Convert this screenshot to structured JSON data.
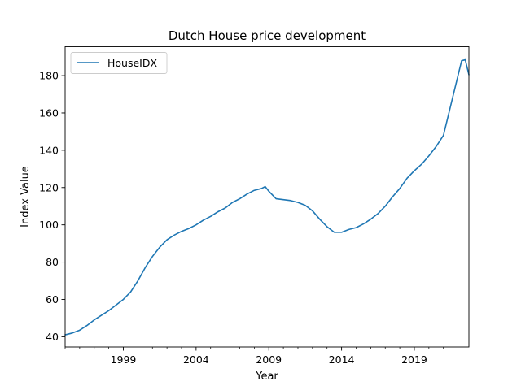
{
  "chart_data": {
    "type": "line",
    "title": "Dutch House price development",
    "xlabel": "Year",
    "ylabel": "Index Value",
    "xlim": [
      1995.0,
      2022.75
    ],
    "ylim": [
      34.5,
      195.5
    ],
    "x_ticks": [
      1999,
      2004,
      2009,
      2014,
      2019
    ],
    "y_ticks": [
      40,
      60,
      80,
      100,
      120,
      140,
      160,
      180
    ],
    "grid": false,
    "legend": "upper-left",
    "series": [
      {
        "name": "HouseIDX",
        "color": "#1f77b4",
        "x": [
          1995.0,
          1995.5,
          1996.0,
          1996.5,
          1997.0,
          1997.5,
          1998.0,
          1998.5,
          1999.0,
          1999.5,
          2000.0,
          2000.5,
          2001.0,
          2001.5,
          2002.0,
          2002.5,
          2003.0,
          2003.5,
          2004.0,
          2004.5,
          2005.0,
          2005.5,
          2006.0,
          2006.5,
          2007.0,
          2007.5,
          2008.0,
          2008.5,
          2008.75,
          2009.0,
          2009.5,
          2010.0,
          2010.5,
          2011.0,
          2011.5,
          2012.0,
          2012.5,
          2013.0,
          2013.5,
          2014.0,
          2014.5,
          2015.0,
          2015.5,
          2016.0,
          2016.5,
          2017.0,
          2017.5,
          2018.0,
          2018.5,
          2019.0,
          2019.5,
          2020.0,
          2020.5,
          2021.0,
          2021.5,
          2022.0,
          2022.25,
          2022.5,
          2022.75
        ],
        "y": [
          41,
          42,
          43.5,
          46,
          49,
          51.5,
          54,
          57,
          60,
          64,
          70,
          77,
          83,
          88,
          92,
          94.5,
          96.5,
          98,
          100,
          102.5,
          104.5,
          107,
          109,
          112,
          114,
          116.5,
          118.5,
          119.5,
          120.5,
          118,
          114,
          113.5,
          113,
          112,
          110.5,
          107.5,
          103,
          99,
          96,
          96,
          97.5,
          98.5,
          100.5,
          103,
          106,
          110,
          115,
          119.5,
          125,
          129,
          132.5,
          137,
          142,
          148,
          164,
          180,
          188,
          188.5,
          180.5
        ]
      }
    ]
  }
}
